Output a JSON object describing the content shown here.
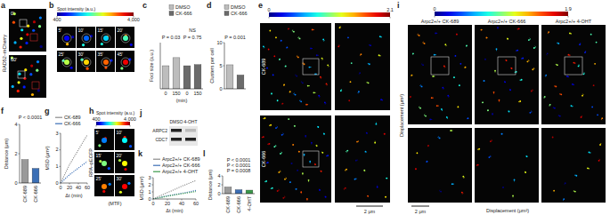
{
  "figure": {
    "panel_letters": [
      "a",
      "b",
      "c",
      "d",
      "e",
      "f",
      "g",
      "h",
      "i",
      "j",
      "k",
      "l"
    ],
    "a": {
      "label": "RAD52–mCherry",
      "times": [
        "0'",
        "60'"
      ]
    },
    "b": {
      "colorbar_title": "Spot intensity (a.u.)",
      "colorbar_range": [
        400,
        4000
      ],
      "colorbar_ticks": [
        400,
        {
          "value": 4000,
          "label": "4,000"
        }
      ],
      "times": [
        "5'",
        "10'",
        "15'",
        "20'",
        "25'",
        "30'",
        "35'",
        "45'"
      ]
    },
    "e": {
      "colorbar_range": [
        0,
        2.1
      ],
      "colorbar_ticks": [
        0,
        2.1
      ],
      "conditions": [
        "CK-689",
        "CK-666"
      ],
      "scale_bar": "2 μm"
    },
    "h": {
      "colorbar_title": "Spot intensity (a.u.)",
      "colorbar_range": [
        400,
        4000
      ],
      "colorbar_ticks": [
        400,
        {
          "value": 4000,
          "label": "4,000"
        }
      ],
      "times": [
        "5'",
        "10'",
        "15'",
        "20'",
        "25'",
        "30'"
      ],
      "label": "RPA–pEGFP",
      "note": "(MTF)"
    },
    "i": {
      "colorbar_range": [
        0,
        1.9
      ],
      "colorbar_ticks": [
        0,
        1.9
      ],
      "conditions": [
        "Arpc2+/+ CK-689",
        "Arpc2+/+ CK-666",
        "Arpc2+/+ 4-OHT"
      ],
      "x_label": "Displacement (μm²)",
      "y_label": "Displacement (μm²)",
      "scale_bar": "2 μm"
    },
    "j": {
      "columns": [
        "DMSO",
        "4-OHT"
      ],
      "bands": [
        "ARPC2",
        "CDC7"
      ]
    }
  },
  "chart_data": [
    {
      "type": "bar",
      "y_label": "Foci size (a.u.)",
      "x_label": "(min)",
      "categories": [
        "0",
        "150",
        "0",
        "150"
      ],
      "series": [
        {
          "name": "DMSO",
          "color": "#bdbdbd",
          "values": [
            1.0,
            1.35,
            null,
            null
          ]
        },
        {
          "name": "CK-666",
          "color": "#6b6b6b",
          "values": [
            null,
            null,
            1.0,
            1.05
          ]
        }
      ],
      "ylim": [
        0,
        2
      ],
      "tick_labels": "x",
      "legend": "top",
      "annotations": [
        "P = 0.03",
        "NS",
        "P = 0.75"
      ]
    },
    {
      "type": "bar",
      "y_label": "Clusters per cell",
      "categories": [
        null,
        null
      ],
      "series": [
        {
          "name": "DMSO",
          "color": "#bdbdbd",
          "values": [
            5.2,
            null
          ]
        },
        {
          "name": "CK-666",
          "color": "#6b6b6b",
          "values": [
            null,
            3.0
          ]
        }
      ],
      "ylim": [
        0,
        10
      ],
      "yticks": [
        0,
        5,
        10
      ],
      "legend": "top",
      "annotations": [
        "P = 0.001"
      ]
    },
    {
      "type": "bar",
      "y_label": "Distance (μm)",
      "categories": [
        "CK-689",
        "CK-666"
      ],
      "values": [
        1.6,
        1.0
      ],
      "colors": [
        "#9a9a9a",
        "#3b6fb6"
      ],
      "ylim": [
        0,
        4
      ],
      "yticks": [
        0,
        2,
        4
      ],
      "annotations": [
        "P < 0.0001"
      ]
    },
    {
      "type": "line",
      "x_label": "Δt (min)",
      "y_label": "MSD (μm²)",
      "x": [
        0,
        20,
        40,
        60
      ],
      "xlim": [
        0,
        60
      ],
      "xticks": [
        0,
        20,
        40,
        60
      ],
      "ylim": [
        0,
        3
      ],
      "yticks": [
        0,
        1,
        2,
        3
      ],
      "legend": "top-left",
      "line_style": "dotted",
      "series": [
        {
          "name": "CK-689",
          "color": "#8a8a8a",
          "values": [
            0,
            1.1,
            2.0,
            2.9
          ]
        },
        {
          "name": "CK-666",
          "color": "#3b6fb6",
          "values": [
            0,
            0.5,
            0.9,
            1.3
          ]
        }
      ]
    },
    {
      "type": "line",
      "x_label": "Δt (min)",
      "y_label": "MSD (μm²)",
      "x": [
        0,
        20,
        40,
        60
      ],
      "xlim": [
        0,
        60
      ],
      "xticks": [
        0,
        20,
        40,
        60
      ],
      "ylim": [
        0,
        3
      ],
      "yticks": [
        0,
        1,
        2,
        3
      ],
      "legend": "top-left",
      "line_style": "dotted",
      "series": [
        {
          "name": "Arpc2+/+ CK-689",
          "color": "#8a8a8a",
          "values": [
            0,
            0.9,
            1.8,
            2.6
          ]
        },
        {
          "name": "Arpc2+/+ CK-666",
          "color": "#3b6fb6",
          "values": [
            0,
            0.45,
            0.8,
            1.2
          ]
        },
        {
          "name": "Arpc2+/+ 4-OHT",
          "color": "#3a9a4a",
          "values": [
            0,
            0.4,
            0.75,
            1.05
          ]
        }
      ]
    },
    {
      "type": "bar",
      "y_label": "Distance (μm)",
      "categories": [
        "CK-689",
        "CK-666",
        "4-OHT"
      ],
      "values": [
        1.5,
        0.9,
        0.8
      ],
      "colors": [
        "#9a9a9a",
        "#3b6fb6",
        "#3a9a4a"
      ],
      "ylim": [
        0,
        4
      ],
      "yticks": [
        0,
        2,
        4
      ],
      "annotations": [
        "P < 0.0001",
        "P < 0.0001",
        "P = 0.0008"
      ]
    }
  ]
}
